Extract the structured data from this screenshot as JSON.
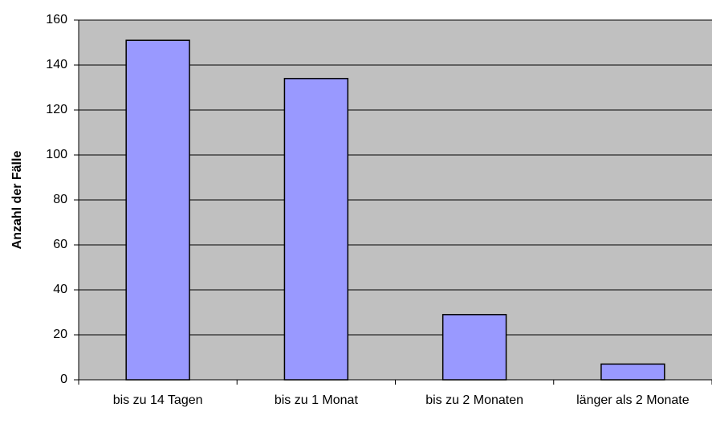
{
  "chart_data": {
    "type": "bar",
    "categories": [
      "bis zu 14 Tagen",
      "bis zu 1 Monat",
      "bis zu 2 Monaten",
      "länger als 2 Monate"
    ],
    "values": [
      151,
      134,
      29,
      7
    ],
    "color": "#9999ff",
    "ylabel": "Anzahl der Fälle",
    "ylim": [
      0,
      160
    ],
    "yticks": [
      0,
      20,
      40,
      60,
      80,
      100,
      120,
      140,
      160
    ],
    "grid": true
  }
}
